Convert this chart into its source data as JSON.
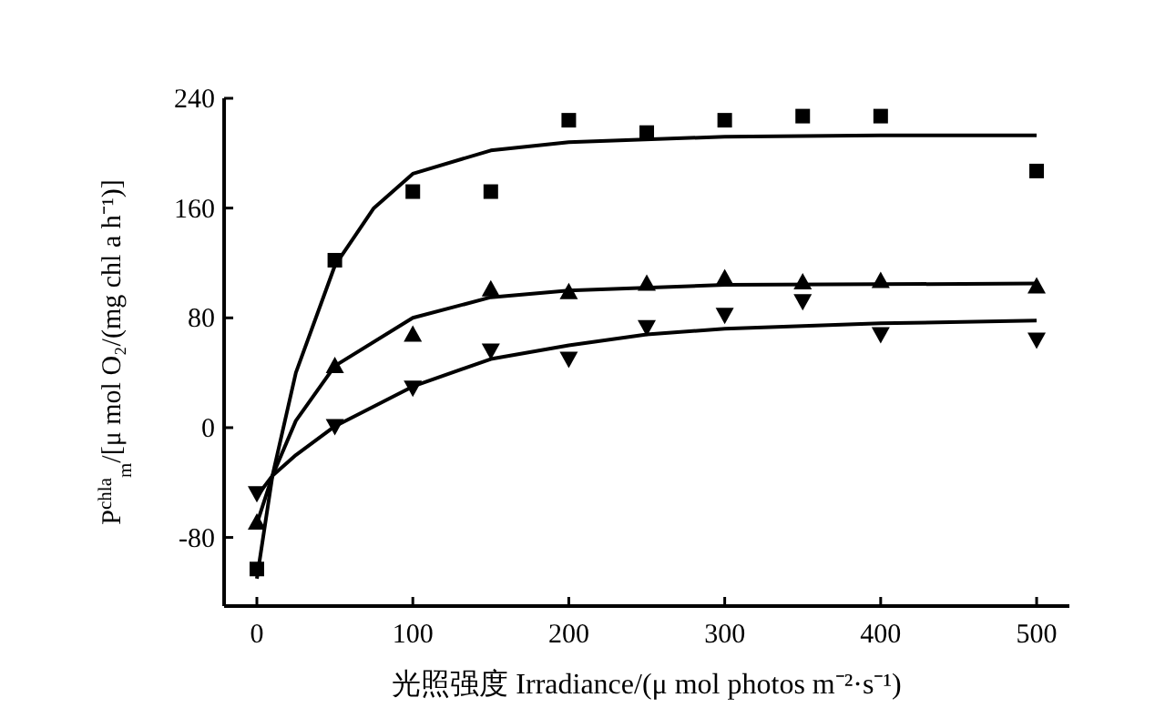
{
  "chart_data": {
    "type": "scatter",
    "xlabel": "光照强度 Irradiance/(μ mol photos m⁻²·s⁻¹)",
    "ylabel": "P$^{chla}$$_{m}$/[μ mol O₂/(mg chl a h⁻¹)]",
    "xlim": [
      -21,
      521
    ],
    "ylim": [
      -130,
      240
    ],
    "xticks": [
      0,
      100,
      200,
      300,
      400,
      500
    ],
    "yticks": [
      -80,
      0,
      80,
      160,
      240
    ],
    "grid": false,
    "series": [
      {
        "marker": "square",
        "color": "#000000",
        "x": [
          0,
          50,
          100,
          150,
          200,
          250,
          300,
          350,
          400,
          500
        ],
        "values": [
          -103,
          122,
          172,
          172,
          224,
          215,
          224,
          227,
          227,
          187
        ]
      },
      {
        "marker": "triangle",
        "color": "#000000",
        "x": [
          0,
          50,
          100,
          150,
          200,
          250,
          300,
          350,
          400,
          500
        ],
        "values": [
          -69,
          45,
          68,
          101,
          99,
          105,
          109,
          106,
          107,
          103
        ]
      },
      {
        "marker": "triangle-down",
        "color": "#000000",
        "x": [
          0,
          50,
          100,
          150,
          200,
          250,
          300,
          350,
          400,
          500
        ],
        "values": [
          -48,
          1,
          29,
          56,
          50,
          73,
          82,
          92,
          68,
          64
        ]
      },
      {
        "type": "line",
        "marker": "none",
        "line_style": "solid",
        "color": "#000000",
        "x": [
          0,
          10,
          25,
          50,
          75,
          100,
          150,
          200,
          300,
          400,
          500
        ],
        "values": [
          -110,
          -35,
          40,
          118,
          160,
          185,
          202,
          208,
          212,
          213,
          213
        ]
      },
      {
        "type": "line",
        "marker": "none",
        "line_style": "solid",
        "color": "#000000",
        "x": [
          0,
          10,
          25,
          50,
          100,
          150,
          200,
          300,
          500
        ],
        "values": [
          -70,
          -35,
          5,
          45,
          80,
          95,
          100,
          104,
          105
        ]
      },
      {
        "type": "line",
        "marker": "none",
        "line_style": "solid",
        "color": "#000000",
        "x": [
          0,
          10,
          25,
          50,
          100,
          150,
          200,
          250,
          300,
          400,
          500
        ],
        "values": [
          -50,
          -35,
          -20,
          1,
          30,
          50,
          60,
          68,
          72,
          76,
          78
        ]
      }
    ]
  }
}
